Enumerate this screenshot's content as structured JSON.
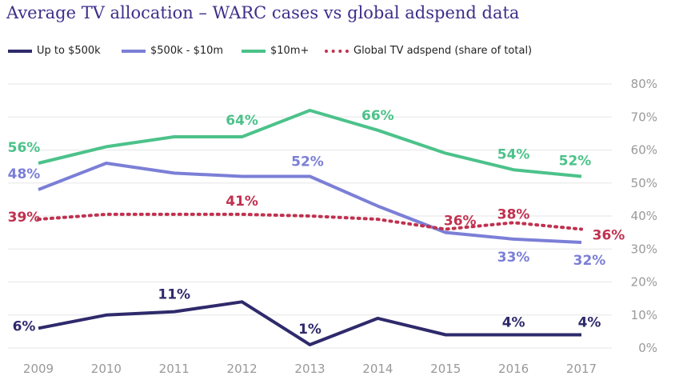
{
  "chart_data": {
    "type": "line",
    "title": "Average TV allocation – WARC cases vs global adspend data",
    "x": [
      "2009",
      "2010",
      "2011",
      "2012",
      "2013",
      "2014",
      "2015",
      "2016",
      "2017"
    ],
    "ylim": [
      0,
      80
    ],
    "yticks": [
      "0%",
      "10%",
      "20%",
      "30%",
      "40%",
      "50%",
      "60%",
      "70%",
      "80%"
    ],
    "y_axis_side": "right",
    "grid": true,
    "legend_position": "top",
    "series": [
      {
        "name": "Up to $500k",
        "color": "#2e2a6b",
        "style": "solid",
        "values": [
          6,
          10,
          11,
          14,
          1,
          9,
          4,
          4,
          4
        ],
        "labels": [
          "6%",
          null,
          "11%",
          null,
          "1%",
          null,
          null,
          "4%",
          "4%"
        ]
      },
      {
        "name": "$500k - $10m",
        "color": "#7b7fd6",
        "style": "solid",
        "values": [
          48,
          56,
          53,
          52,
          52,
          43,
          35,
          33,
          32
        ],
        "labels": [
          "48%",
          null,
          null,
          null,
          "52%",
          null,
          null,
          "33%",
          "32%"
        ]
      },
      {
        "name": "$10m+",
        "color": "#4cc28a",
        "style": "solid",
        "values": [
          56,
          61,
          64,
          64,
          72,
          66,
          59,
          54,
          52
        ],
        "labels": [
          "56%",
          null,
          null,
          "64%",
          null,
          "66%",
          null,
          "54%",
          "52%"
        ]
      },
      {
        "name": "Global TV adspend (share of total)",
        "color": "#c0314f",
        "style": "dotted",
        "values": [
          39,
          40.5,
          40.5,
          40.5,
          40,
          39,
          36,
          38,
          36
        ],
        "labels": [
          "39%",
          null,
          null,
          "41%",
          null,
          null,
          "36%",
          "38%",
          "36%"
        ]
      }
    ]
  }
}
